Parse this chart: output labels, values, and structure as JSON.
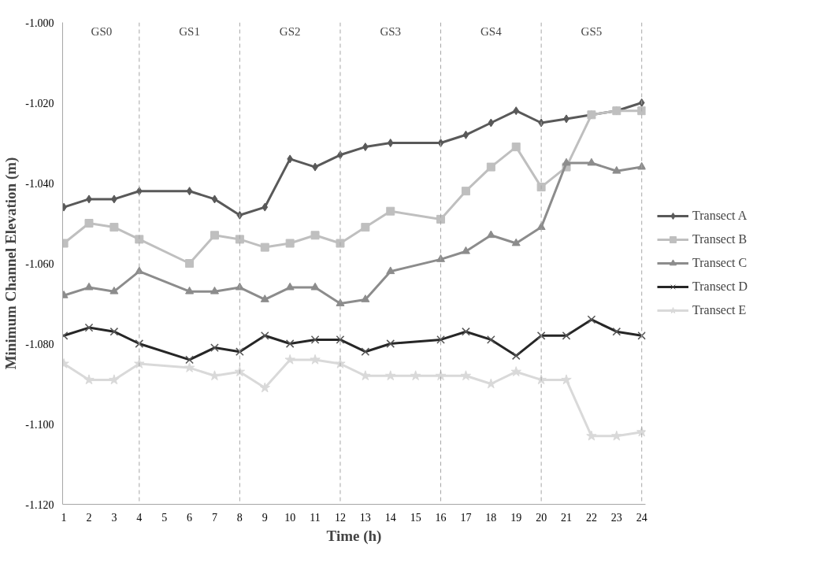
{
  "chart_data": {
    "type": "line",
    "xlabel": "Time (h)",
    "ylabel": "Minimum Channel Elevation (m)",
    "xlim": [
      0.95,
      24.15
    ],
    "xticks": [
      1,
      2,
      3,
      4,
      5,
      6,
      7,
      8,
      9,
      10,
      11,
      12,
      13,
      14,
      15,
      16,
      17,
      18,
      19,
      20,
      21,
      22,
      23,
      24
    ],
    "ylim": [
      -1.12,
      -1.0
    ],
    "yticks": [
      {
        "value": -1.12,
        "label": "-1.120"
      },
      {
        "value": -1.1,
        "label": "-1.100"
      },
      {
        "value": -1.08,
        "label": "-1.080"
      },
      {
        "value": -1.06,
        "label": "-1.060"
      },
      {
        "value": -1.04,
        "label": "-1.040"
      },
      {
        "value": -1.02,
        "label": "-1.020"
      },
      {
        "value": -1.0,
        "label": "-1.000"
      }
    ],
    "grid": false,
    "legend": "right",
    "line_style": "solid",
    "series": [
      {
        "name": "Transect A",
        "color": "#595959",
        "marker": "diamond",
        "x": [
          1,
          2,
          3,
          4,
          6,
          7,
          8,
          9,
          10,
          11,
          12,
          13,
          14,
          16,
          17,
          18,
          19,
          20,
          21,
          22,
          23,
          24
        ],
        "values": [
          -1.046,
          -1.044,
          -1.044,
          -1.042,
          -1.042,
          -1.044,
          -1.048,
          -1.046,
          -1.034,
          -1.036,
          -1.033,
          -1.031,
          -1.03,
          -1.03,
          -1.028,
          -1.025,
          -1.022,
          -1.025,
          -1.024,
          -1.023,
          -1.022,
          -1.02
        ]
      },
      {
        "name": "Transect B",
        "color": "#bfbfbf",
        "marker": "square",
        "x": [
          1,
          2,
          3,
          4,
          6,
          7,
          8,
          9,
          10,
          11,
          12,
          13,
          14,
          16,
          17,
          18,
          19,
          20,
          21,
          22,
          23,
          24
        ],
        "values": [
          -1.055,
          -1.05,
          -1.051,
          -1.054,
          -1.06,
          -1.053,
          -1.054,
          -1.056,
          -1.055,
          -1.053,
          -1.055,
          -1.051,
          -1.047,
          -1.049,
          -1.042,
          -1.036,
          -1.031,
          -1.041,
          -1.036,
          -1.023,
          -1.022,
          -1.022
        ]
      },
      {
        "name": "Transect C",
        "color": "#8c8c8c",
        "marker": "triangle",
        "x": [
          1,
          2,
          3,
          4,
          6,
          7,
          8,
          9,
          10,
          11,
          12,
          13,
          14,
          16,
          17,
          18,
          19,
          20,
          21,
          22,
          23,
          24
        ],
        "values": [
          -1.068,
          -1.066,
          -1.067,
          -1.062,
          -1.067,
          -1.067,
          -1.066,
          -1.069,
          -1.066,
          -1.066,
          -1.07,
          -1.069,
          -1.062,
          -1.059,
          -1.057,
          -1.053,
          -1.055,
          -1.051,
          -1.035,
          -1.035,
          -1.037,
          -1.036
        ]
      },
      {
        "name": "Transect D",
        "color": "#262626",
        "marker": "cross",
        "x": [
          1,
          2,
          3,
          4,
          6,
          7,
          8,
          9,
          10,
          11,
          12,
          13,
          14,
          16,
          17,
          18,
          19,
          20,
          21,
          22,
          23,
          24
        ],
        "values": [
          -1.078,
          -1.076,
          -1.077,
          -1.08,
          -1.084,
          -1.081,
          -1.082,
          -1.078,
          -1.08,
          -1.079,
          -1.079,
          -1.082,
          -1.08,
          -1.079,
          -1.077,
          -1.079,
          -1.083,
          -1.078,
          -1.078,
          -1.074,
          -1.077,
          -1.078
        ]
      },
      {
        "name": "Transect E",
        "color": "#d9d9d9",
        "marker": "star",
        "x": [
          1,
          2,
          3,
          4,
          6,
          7,
          8,
          9,
          10,
          11,
          12,
          13,
          14,
          15,
          16,
          17,
          18,
          19,
          20,
          21,
          22,
          23,
          24
        ],
        "values": [
          -1.085,
          -1.089,
          -1.089,
          -1.085,
          -1.086,
          -1.088,
          -1.087,
          -1.091,
          -1.084,
          -1.084,
          -1.085,
          -1.088,
          -1.088,
          -1.088,
          -1.088,
          -1.088,
          -1.09,
          -1.087,
          -1.089,
          -1.089,
          -1.103,
          -1.103,
          -1.102
        ]
      }
    ],
    "ref_lines": [
      {
        "axis": "x",
        "value": 4,
        "color": "#a6a6a6",
        "line_style": "dashed"
      },
      {
        "axis": "x",
        "value": 8,
        "color": "#a6a6a6",
        "line_style": "dashed"
      },
      {
        "axis": "x",
        "value": 12,
        "color": "#a6a6a6",
        "line_style": "dashed"
      },
      {
        "axis": "x",
        "value": 16,
        "color": "#a6a6a6",
        "line_style": "dashed"
      },
      {
        "axis": "x",
        "value": 20,
        "color": "#a6a6a6",
        "line_style": "dashed"
      },
      {
        "axis": "x",
        "value": 24,
        "color": "#a6a6a6",
        "line_style": "dashed"
      }
    ],
    "annotations": [
      "GS0",
      "GS1",
      "GS2",
      "GS3",
      "GS4",
      "GS5"
    ]
  }
}
